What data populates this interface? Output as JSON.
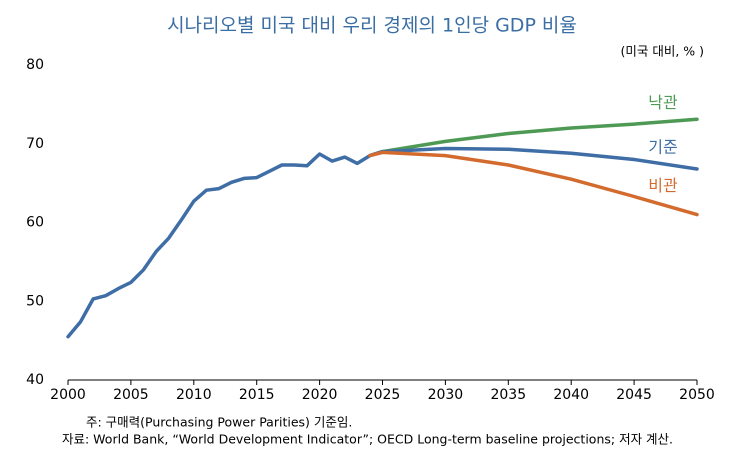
{
  "chart_data": {
    "type": "line",
    "title": "시나리오별 미국 대비 우리 경제의 1인당 GDP 비율",
    "unit_label": "(미국 대비, % )",
    "notes": [
      "주: 구매력(Purchasing Power Parities) 기준임.",
      "자료: World Bank, “World Development Indicator”; OECD Long-term baseline projections; 저자 계산."
    ],
    "xlim": [
      2000,
      2050
    ],
    "xticks": [
      2000,
      2005,
      2010,
      2015,
      2020,
      2025,
      2030,
      2035,
      2040,
      2045,
      2050
    ],
    "ylim": [
      40,
      80
    ],
    "yticks": [
      40,
      50,
      60,
      70,
      80
    ],
    "grid": false,
    "series": [
      {
        "name": "낙관",
        "color": "#4e9a55",
        "x": [
          2024,
          2025,
          2030,
          2035,
          2040,
          2045,
          2050
        ],
        "values": [
          68.5,
          69.0,
          70.3,
          71.3,
          72.0,
          72.5,
          73.1
        ]
      },
      {
        "name": "기준",
        "color": "#3f6ea6",
        "x": [
          2000,
          2001,
          2002,
          2003,
          2004,
          2005,
          2006,
          2007,
          2008,
          2009,
          2010,
          2011,
          2012,
          2013,
          2014,
          2015,
          2016,
          2017,
          2018,
          2019,
          2020,
          2021,
          2022,
          2023,
          2024,
          2025,
          2030,
          2035,
          2040,
          2045,
          2050
        ],
        "values": [
          45.5,
          47.4,
          50.3,
          50.7,
          51.6,
          52.4,
          54.0,
          56.3,
          58.0,
          60.3,
          62.7,
          64.1,
          64.3,
          65.1,
          65.6,
          65.7,
          66.5,
          67.3,
          67.3,
          67.2,
          68.7,
          67.8,
          68.3,
          67.5,
          68.5,
          69.0,
          69.4,
          69.3,
          68.8,
          68.0,
          66.8
        ]
      },
      {
        "name": "비관",
        "color": "#d36b2e",
        "x": [
          2024,
          2025,
          2030,
          2035,
          2040,
          2045,
          2050
        ],
        "values": [
          68.5,
          68.9,
          68.5,
          67.3,
          65.5,
          63.3,
          61.0
        ]
      }
    ]
  }
}
